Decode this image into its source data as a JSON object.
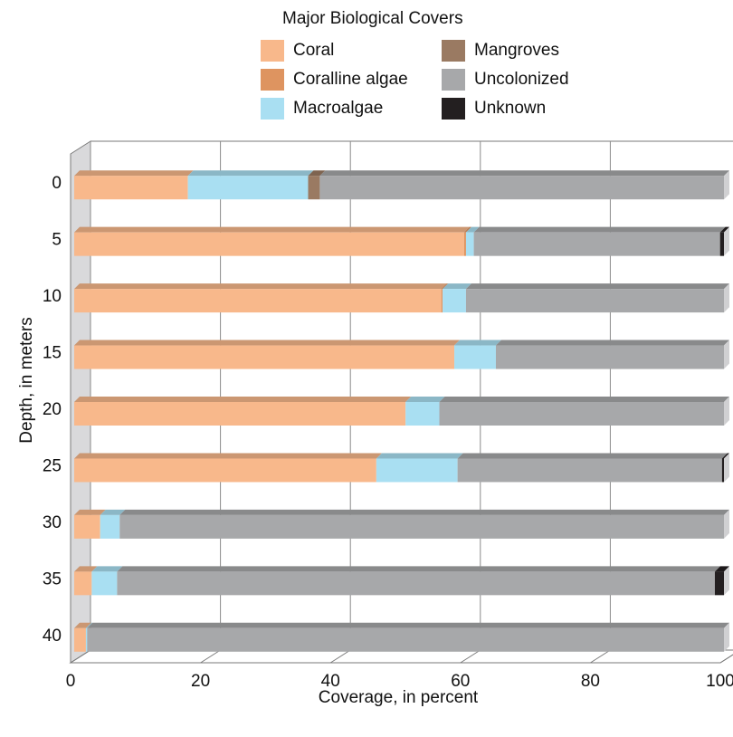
{
  "chart_data": {
    "type": "bar",
    "orientation": "horizontal",
    "stacked": true,
    "legend_title": "Major Biological Covers",
    "ylabel": "Depth, in meters",
    "xlabel": "Coverage, in percent",
    "xlim": [
      0,
      100
    ],
    "xticks": [
      "0",
      "20",
      "40",
      "60",
      "80",
      "100"
    ],
    "categories": [
      "0",
      "5",
      "10",
      "15",
      "20",
      "25",
      "30",
      "35",
      "40"
    ],
    "series": [
      {
        "name": "Coral",
        "color": "#f8b88b",
        "values": [
          17.5,
          60,
          56.5,
          58.5,
          51,
          46.5,
          4,
          2.7,
          1.8
        ]
      },
      {
        "name": "Coralline algae",
        "color": "#de9460",
        "values": [
          0,
          0.3,
          0.2,
          0,
          0,
          0,
          0,
          0,
          0
        ]
      },
      {
        "name": "Macroalgae",
        "color": "#a9dff2",
        "values": [
          18.5,
          1.2,
          3.6,
          6.4,
          5.2,
          12.5,
          3,
          3.9,
          0.2
        ]
      },
      {
        "name": "Mangroves",
        "color": "#9a7a62",
        "values": [
          1.8,
          0,
          0,
          0,
          0,
          0,
          0,
          0,
          0
        ]
      },
      {
        "name": "Uncolonized",
        "color": "#a7a8aa",
        "values": [
          62.2,
          37.9,
          39.7,
          35.1,
          43.8,
          40.7,
          93,
          92,
          98
        ]
      },
      {
        "name": "Unknown",
        "color": "#231f20",
        "values": [
          0,
          0.6,
          0,
          0,
          0,
          0.3,
          0,
          1.4,
          0
        ]
      }
    ],
    "grid": true,
    "legend_position": "top"
  }
}
